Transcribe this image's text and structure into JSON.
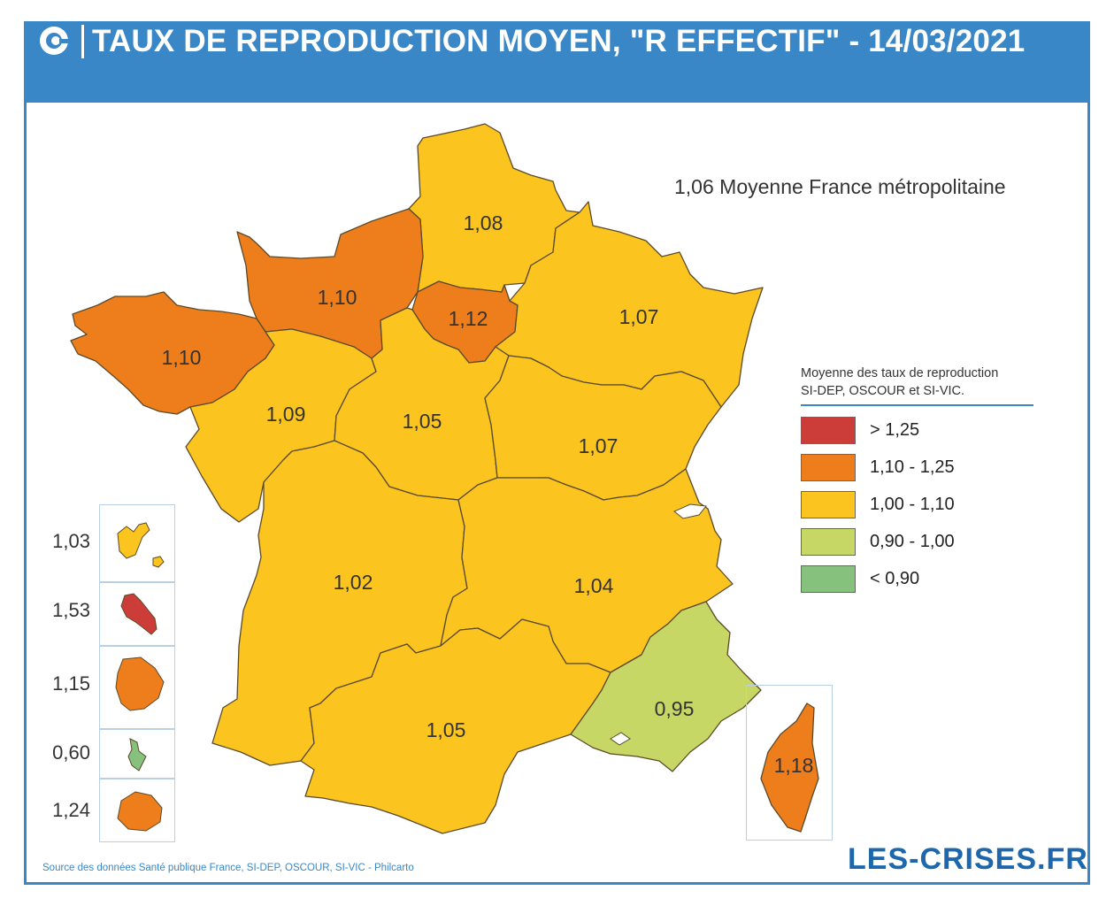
{
  "header": {
    "title": "TAUX DE REPRODUCTION MOYEN, \"R EFFECTIF\" - 14/03/2021",
    "logo_icon": "les-crises-logo-icon",
    "background": "#3a87c8"
  },
  "average_label": "1,06 Moyenne France métropolitaine",
  "legend": {
    "title_line1": "Moyenne des taux de reproduction",
    "title_line2": "SI-DEP, OSCOUR et SI-VIC.",
    "items": [
      {
        "label": "> 1,25",
        "color": "#cc3d3a"
      },
      {
        "label": "1,10 - 1,25",
        "color": "#ee7d1c"
      },
      {
        "label": "1,00 - 1,10",
        "color": "#fcc41e"
      },
      {
        "label": "0,90 - 1,00",
        "color": "#c7d765"
      },
      {
        "label": "< 0,90",
        "color": "#86c17d"
      }
    ]
  },
  "regions": [
    {
      "value": "1,08",
      "color": "#fcc41e"
    },
    {
      "value": "1,10",
      "color": "#ee7d1c"
    },
    {
      "value": "1,12",
      "color": "#ee7d1c"
    },
    {
      "value": "1,07",
      "color": "#fcc41e"
    },
    {
      "value": "1,10",
      "color": "#ee7d1c"
    },
    {
      "value": "1,09",
      "color": "#fcc41e"
    },
    {
      "value": "1,05",
      "color": "#fcc41e"
    },
    {
      "value": "1,07",
      "color": "#fcc41e"
    },
    {
      "value": "1,02",
      "color": "#fcc41e"
    },
    {
      "value": "1,04",
      "color": "#fcc41e"
    },
    {
      "value": "1,05",
      "color": "#fcc41e"
    },
    {
      "value": "0,95",
      "color": "#c7d765"
    },
    {
      "value": "1,18",
      "color": "#ee7d1c"
    }
  ],
  "overseas": [
    {
      "value": "1,03",
      "color": "#fcc41e"
    },
    {
      "value": "1,53",
      "color": "#cc3d3a"
    },
    {
      "value": "1,15",
      "color": "#ee7d1c"
    },
    {
      "value": "0,60",
      "color": "#86c17d"
    },
    {
      "value": "1,24",
      "color": "#ee7d1c"
    }
  ],
  "source": "Source des données Santé publique France, SI-DEP, OSCOUR, SI-VIC - Philcarto",
  "brand": "LES-CRISES.FR"
}
